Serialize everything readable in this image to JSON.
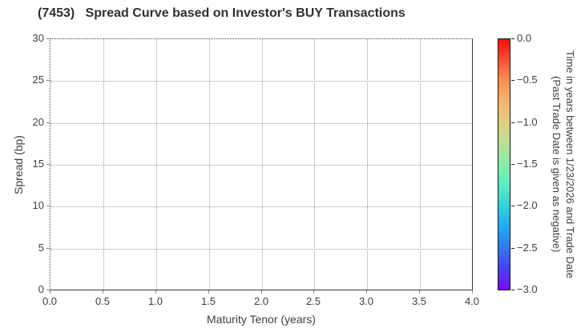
{
  "title": "(7453)   Spread Curve based on Investor's BUY Transactions",
  "chart_data": {
    "type": "scatter",
    "title": "(7453)   Spread Curve based on Investor's BUY Transactions",
    "xlabel": "Maturity Tenor (years)",
    "ylabel": "Spread (bp)",
    "xlim": [
      0.0,
      4.0
    ],
    "ylim": [
      0,
      30
    ],
    "x_ticks": [
      "0.0",
      "0.5",
      "1.0",
      "1.5",
      "2.0",
      "2.5",
      "3.0",
      "3.5",
      "4.0"
    ],
    "y_ticks": [
      "0",
      "5",
      "10",
      "15",
      "20",
      "25",
      "30"
    ],
    "grid": "dotted",
    "legend": "none",
    "points": [],
    "note": "no data points are plotted; axes and colorbar only",
    "colorbar": {
      "label_line1": "Time in years between 1/23/2026 and Trade Date",
      "label_line2": "(Past Trade Date is given as negative)",
      "ticks": [
        "0.0",
        "−0.5",
        "−1.0",
        "−1.5",
        "−2.0",
        "−2.5",
        "−3.0"
      ],
      "range_top": 0.0,
      "range_bottom": -3.0,
      "gradient_top_to_bottom": [
        "#fb0d07",
        "#f95038",
        "#f9904f",
        "#f2b56a",
        "#e2cf80",
        "#b8e295",
        "#86edaa",
        "#5aedc2",
        "#2fd2de",
        "#21abee",
        "#2e79f2",
        "#4b3ff7",
        "#7a09fb"
      ]
    },
    "colors": {
      "grid": "#999999",
      "spine": "#3a3a3a",
      "text": "#3d3d3d",
      "background": "#ffffff"
    }
  }
}
